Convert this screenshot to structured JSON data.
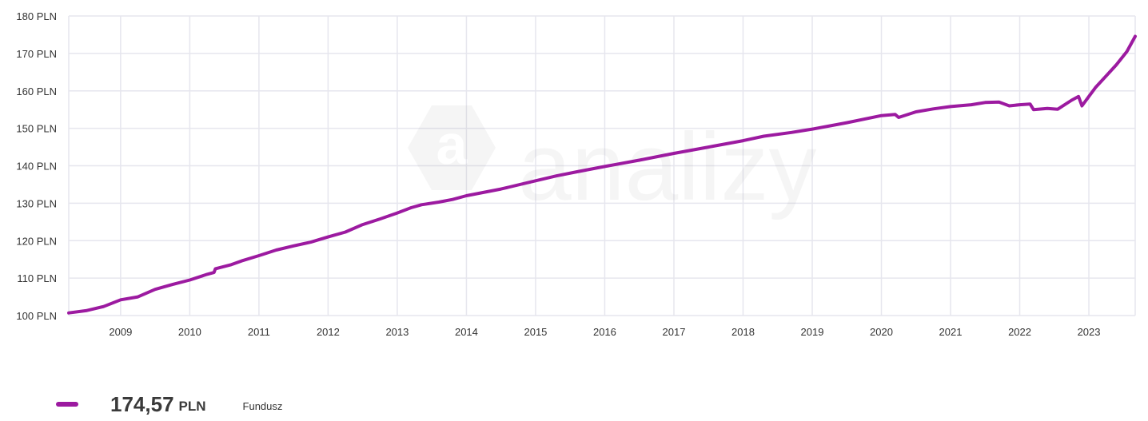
{
  "chart_data": {
    "type": "line",
    "y_ticks": [
      "100 PLN",
      "110 PLN",
      "120 PLN",
      "130 PLN",
      "140 PLN",
      "150 PLN",
      "160 PLN",
      "170 PLN",
      "180 PLN"
    ],
    "x_ticks": [
      "2009",
      "2010",
      "2011",
      "2012",
      "2013",
      "2014",
      "2015",
      "2016",
      "2017",
      "2018",
      "2019",
      "2020",
      "2021",
      "2022",
      "2023"
    ],
    "ylim": [
      100,
      180
    ],
    "xlim": [
      2008.25,
      2023.67
    ],
    "grid": true,
    "series": [
      {
        "name": "Fundusz",
        "color": "#9c1aa0",
        "x": [
          2008.25,
          2008.5,
          2008.75,
          2009.0,
          2009.25,
          2009.5,
          2009.75,
          2010.0,
          2010.25,
          2010.35,
          2010.37,
          2010.6,
          2010.75,
          2011.0,
          2011.25,
          2011.5,
          2011.75,
          2012.0,
          2012.25,
          2012.5,
          2012.75,
          2013.0,
          2013.2,
          2013.35,
          2013.6,
          2013.8,
          2014.0,
          2014.5,
          2015.0,
          2015.3,
          2015.6,
          2016.0,
          2016.5,
          2017.0,
          2017.5,
          2018.0,
          2018.3,
          2018.7,
          2019.0,
          2019.5,
          2020.0,
          2020.2,
          2020.25,
          2020.5,
          2020.75,
          2021.0,
          2021.3,
          2021.5,
          2021.7,
          2021.85,
          2022.0,
          2022.15,
          2022.2,
          2022.4,
          2022.55,
          2022.75,
          2022.85,
          2022.9,
          2023.0,
          2023.1,
          2023.25,
          2023.4,
          2023.55,
          2023.67
        ],
        "values": [
          100.7,
          101.3,
          102.4,
          104.2,
          105.0,
          107.0,
          108.3,
          109.5,
          111.0,
          111.5,
          112.5,
          113.6,
          114.6,
          116.0,
          117.5,
          118.6,
          119.6,
          121.0,
          122.3,
          124.3,
          125.8,
          127.4,
          128.8,
          129.6,
          130.3,
          131.0,
          132.0,
          133.8,
          136.0,
          137.3,
          138.4,
          139.8,
          141.5,
          143.3,
          145.0,
          146.7,
          147.9,
          148.9,
          149.8,
          151.5,
          153.4,
          153.7,
          152.9,
          154.4,
          155.2,
          155.8,
          156.3,
          156.9,
          157.0,
          156.0,
          156.3,
          156.5,
          155.0,
          155.3,
          155.1,
          157.5,
          158.5,
          156.0,
          158.5,
          161.0,
          164.0,
          167.0,
          170.5,
          174.57
        ]
      }
    ]
  },
  "legend": {
    "value": "174,57",
    "unit": "PLN",
    "label": "Fundusz",
    "color": "#9c1aa0"
  },
  "watermark": "analizy"
}
